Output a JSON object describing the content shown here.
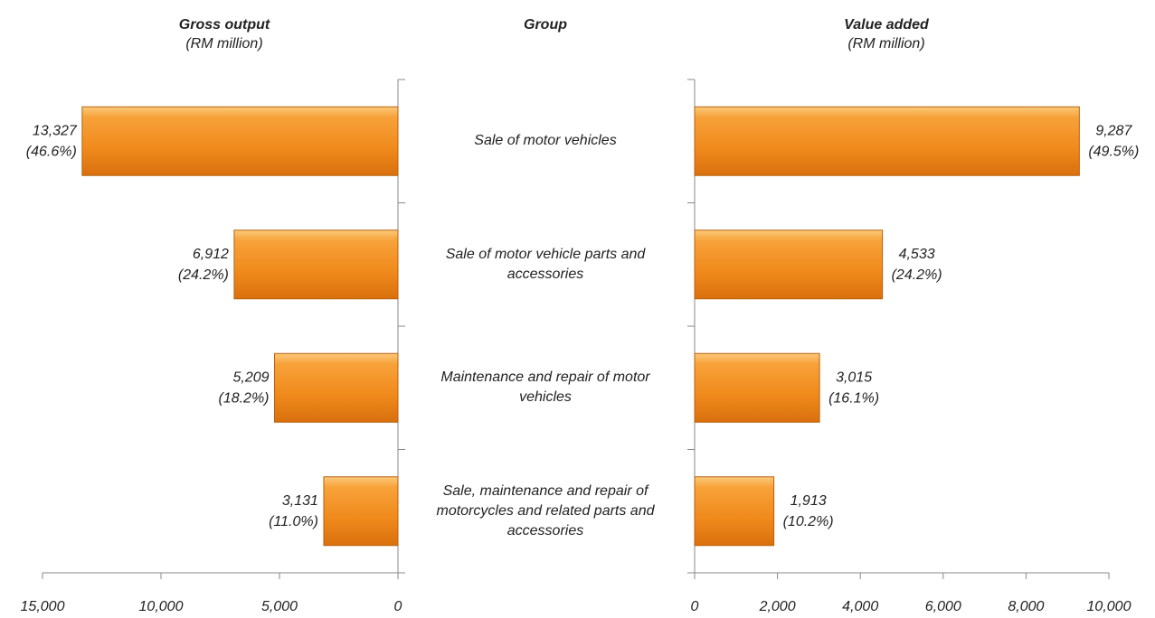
{
  "chart_data": [
    {
      "type": "bar",
      "title": "Gross output",
      "subtitle": "(RM million)",
      "category_title": "Group",
      "categories": [
        "Sale of motor vehicles",
        "Sale of motor vehicle parts and accessories",
        "Maintenance and repair of motor vehicles",
        "Sale, maintenance and repair of motorcycles and related parts and accessories"
      ],
      "values": [
        13327,
        6912,
        5209,
        3131
      ],
      "value_labels": [
        "13,327",
        "6,912",
        "5,209",
        "3,131"
      ],
      "share_labels": [
        "(46.6%)",
        "(24.2%)",
        "(18.2%)",
        "(11.0%)"
      ],
      "color": "#f08a1c",
      "x_reversed": true,
      "xlim": [
        0,
        15000
      ],
      "xticks": [
        {
          "value": 15000,
          "label": "15,000"
        },
        {
          "value": 10000,
          "label": "10,000"
        },
        {
          "value": 5000,
          "label": "5,000"
        },
        0
      ]
    },
    {
      "type": "bar",
      "title": "Value added",
      "subtitle": "(RM million)",
      "values": [
        9287,
        4533,
        3015,
        1913
      ],
      "value_labels": [
        "9,287",
        "4,533",
        "3,015",
        "1,913"
      ],
      "share_labels": [
        "(49.5%)",
        "(24.2%)",
        "(16.1%)",
        "(10.2%)"
      ],
      "color": "#f08a1c",
      "x_reversed": false,
      "xlim": [
        0,
        10000
      ],
      "xticks": [
        0,
        {
          "value": 2000,
          "label": "2,000"
        },
        {
          "value": 4000,
          "label": "4,000"
        },
        {
          "value": 6000,
          "label": "6,000"
        },
        {
          "value": 8000,
          "label": "8,000"
        },
        {
          "value": 10000,
          "label": "10,000"
        }
      ]
    }
  ]
}
